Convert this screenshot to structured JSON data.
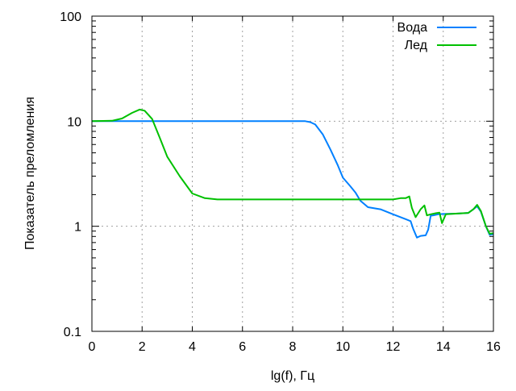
{
  "chart_data": {
    "type": "line",
    "title": "",
    "xlabel": "lg(f), Гц",
    "ylabel": "Показатель преломления",
    "xlim": [
      0,
      16
    ],
    "ylim": [
      0.1,
      100
    ],
    "yscale": "log",
    "grid": true,
    "legend_position": "top-right",
    "xticks": [
      "0",
      "2",
      "4",
      "6",
      "8",
      "10",
      "12",
      "14",
      "16"
    ],
    "yticks": [
      "0.1",
      "1",
      "10",
      "100"
    ],
    "series": [
      {
        "name": "Вода",
        "color": "#0080ff",
        "x": [
          0,
          2,
          4,
          6,
          8,
          8.5,
          8.7,
          8.9,
          9.2,
          9.5,
          9.8,
          10,
          10.3,
          10.5,
          10.7,
          11,
          11.5,
          12,
          12.5,
          12.7,
          12.8,
          12.95,
          13.1,
          13.3,
          13.4,
          13.5,
          13.6,
          13.8,
          14,
          14.5,
          15,
          15.2,
          15.35,
          15.5,
          15.7,
          15.85,
          16
        ],
        "y": [
          10,
          10,
          10,
          10,
          10,
          10,
          9.8,
          9.3,
          7.5,
          5.4,
          3.8,
          2.9,
          2.4,
          2.1,
          1.75,
          1.52,
          1.45,
          1.3,
          1.17,
          1.12,
          0.95,
          0.78,
          0.81,
          0.82,
          0.93,
          1.26,
          1.27,
          1.3,
          1.31,
          1.32,
          1.34,
          1.45,
          1.55,
          1.38,
          1.0,
          0.83,
          0.84
        ]
      },
      {
        "name": "Лед",
        "color": "#00c000",
        "x": [
          0,
          0.8,
          1.2,
          1.6,
          1.9,
          2.1,
          2.4,
          2.7,
          3,
          3.5,
          4,
          4.5,
          5,
          8,
          10,
          12,
          12.3,
          12.5,
          12.65,
          12.75,
          12.9,
          13.1,
          13.25,
          13.35,
          13.5,
          13.7,
          13.85,
          13.95,
          14.1,
          14.5,
          15,
          15.2,
          15.35,
          15.5,
          15.7,
          15.85,
          16
        ],
        "y": [
          10,
          10.1,
          10.6,
          12,
          12.9,
          12.6,
          10.5,
          7,
          4.6,
          3,
          2.05,
          1.85,
          1.8,
          1.8,
          1.8,
          1.8,
          1.85,
          1.85,
          1.92,
          1.5,
          1.22,
          1.45,
          1.58,
          1.27,
          1.3,
          1.33,
          1.35,
          1.07,
          1.3,
          1.32,
          1.34,
          1.45,
          1.6,
          1.4,
          1.0,
          0.85,
          0.86
        ]
      }
    ]
  }
}
